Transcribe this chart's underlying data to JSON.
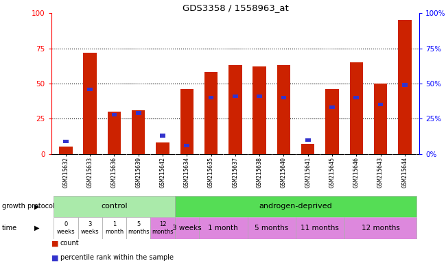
{
  "title": "GDS3358 / 1558963_at",
  "samples": [
    "GSM215632",
    "GSM215633",
    "GSM215636",
    "GSM215639",
    "GSM215642",
    "GSM215634",
    "GSM215635",
    "GSM215637",
    "GSM215638",
    "GSM215640",
    "GSM215641",
    "GSM215645",
    "GSM215646",
    "GSM215643",
    "GSM215644"
  ],
  "count_values": [
    5,
    72,
    30,
    31,
    8,
    46,
    58,
    63,
    62,
    63,
    7,
    46,
    65,
    50,
    95
  ],
  "percentile_values": [
    9,
    46,
    28,
    29,
    13,
    6,
    40,
    41,
    41,
    40,
    10,
    33,
    40,
    35,
    49
  ],
  "bar_color": "#cc2200",
  "percentile_color": "#3333cc",
  "yticks": [
    0,
    25,
    50,
    75,
    100
  ],
  "control_indices": [
    0,
    1,
    2,
    3,
    4
  ],
  "androgen_indices": [
    5,
    6,
    7,
    8,
    9,
    10,
    11,
    12,
    13,
    14
  ],
  "control_label": "control",
  "androgen_label": "androgen-deprived",
  "time_labels_control": [
    "0\nweeks",
    "3\nweeks",
    "1\nmonth",
    "5\nmonths",
    "12\nmonths"
  ],
  "time_labels_androgen": [
    "3 weeks",
    "1 month",
    "5 months",
    "11 months",
    "12 months"
  ],
  "time_groups_androgen": [
    [
      5
    ],
    [
      6,
      7
    ],
    [
      8,
      9
    ],
    [
      10,
      11
    ],
    [
      12,
      13,
      14
    ]
  ],
  "growth_protocol_label": "growth protocol",
  "time_label": "time",
  "legend_count": "count",
  "legend_percentile": "percentile rank within the sample",
  "control_color": "#aaeaaa",
  "androgen_color": "#55dd55",
  "time_white_color": "#ffffff",
  "time_pink_color": "#dd88dd",
  "xaxis_bg": "#cccccc",
  "bar_width": 0.55
}
